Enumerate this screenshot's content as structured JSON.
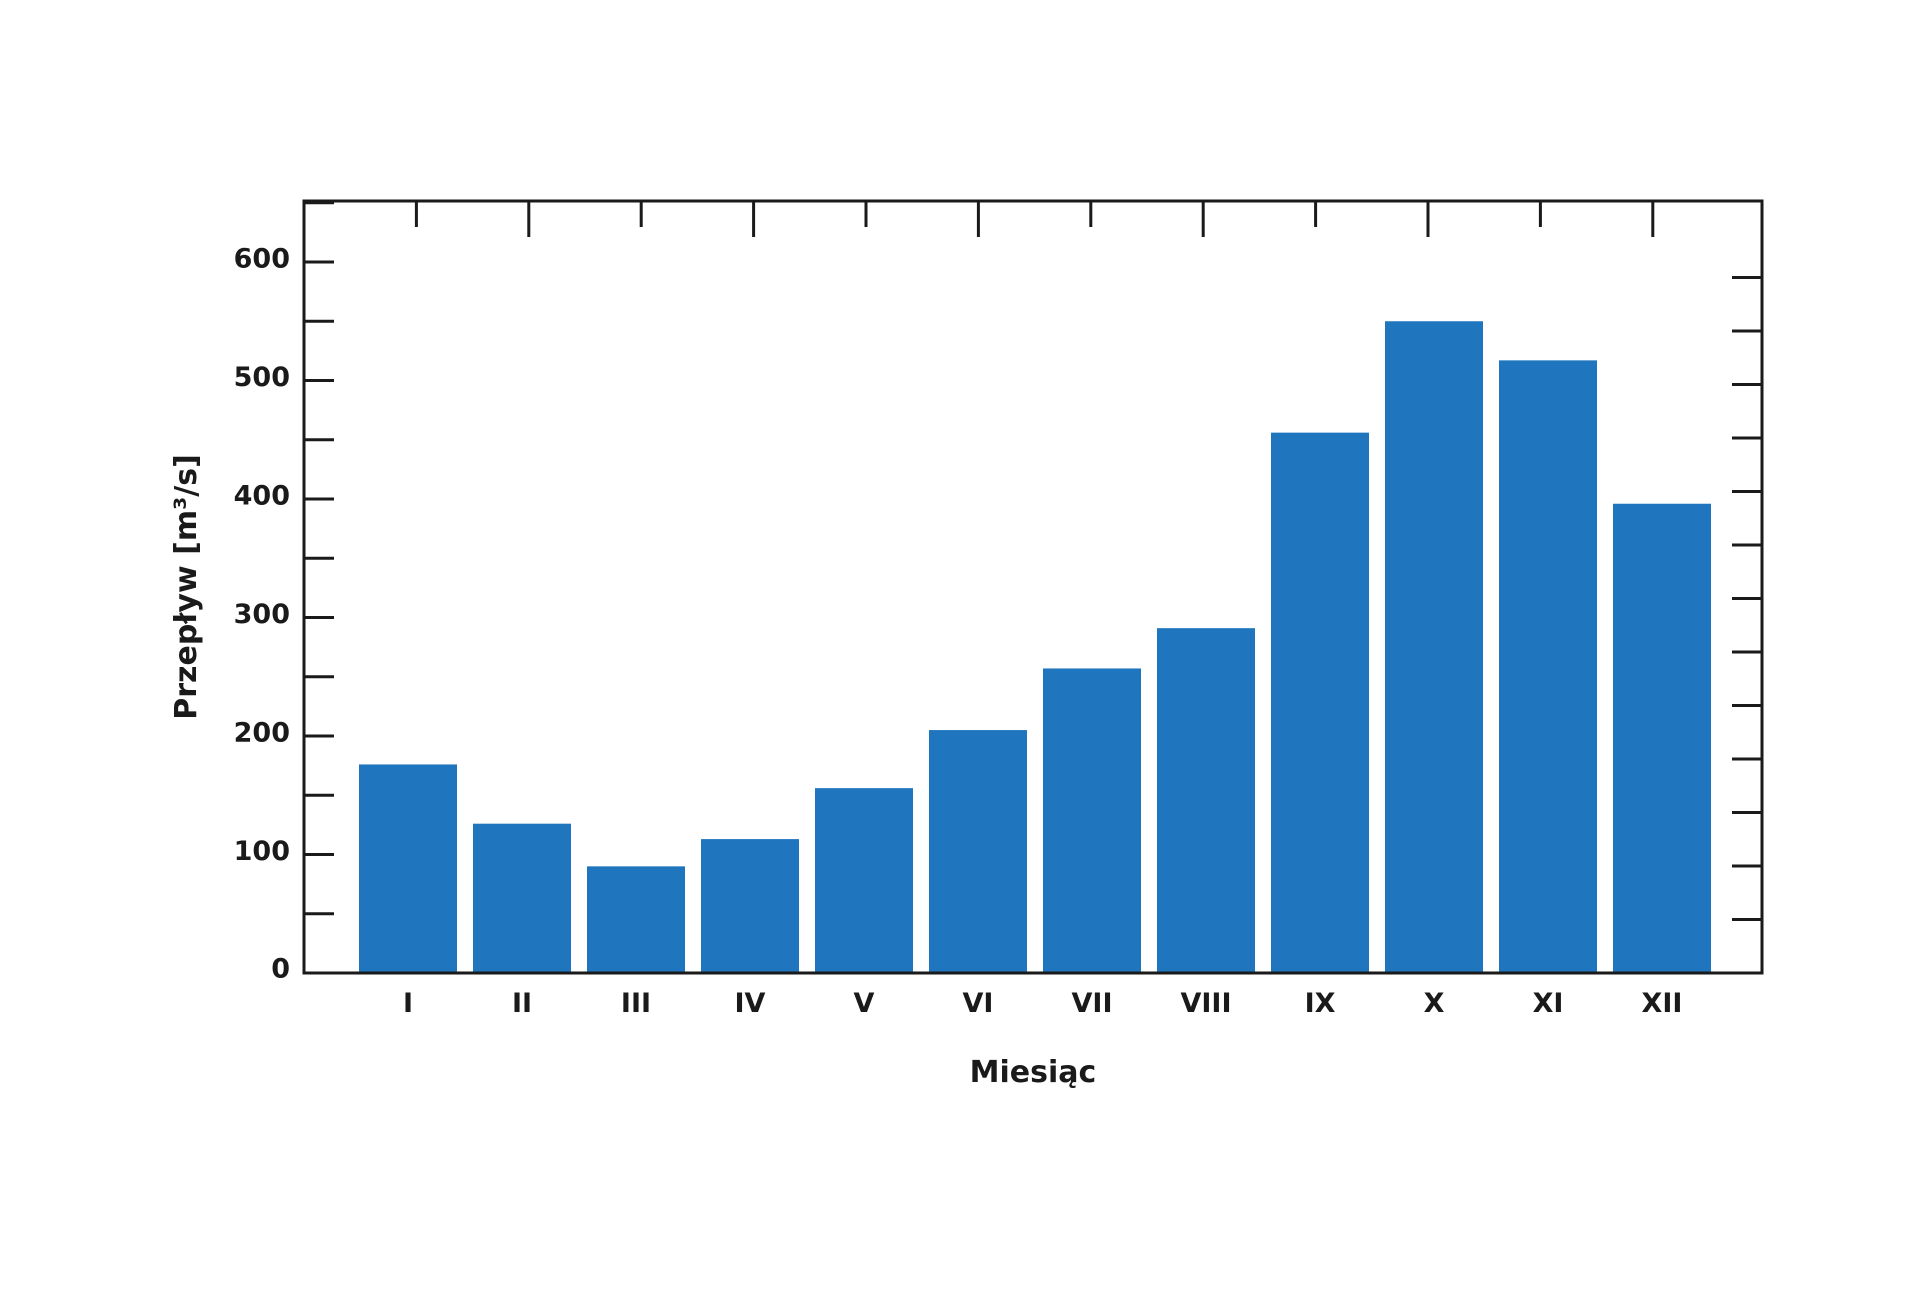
{
  "chart_data": {
    "type": "bar",
    "categories": [
      "I",
      "II",
      "III",
      "IV",
      "V",
      "VI",
      "VII",
      "VIII",
      "IX",
      "X",
      "XI",
      "XII"
    ],
    "values": [
      176,
      126,
      90,
      113,
      156,
      205,
      257,
      291,
      456,
      550,
      517,
      396
    ],
    "xlabel": "Miesiąc",
    "ylabel": "Przepływ [m³/s]",
    "ylim": [
      0,
      650
    ],
    "yticks": [
      0,
      100,
      200,
      300,
      400,
      500,
      600
    ],
    "ytick_labels": [
      "0",
      "100",
      "200",
      "300",
      "400",
      "500",
      "600"
    ],
    "bar_color": "#1f75be",
    "axis_color": "#1a1a1a",
    "grid": false,
    "legend": "none"
  }
}
